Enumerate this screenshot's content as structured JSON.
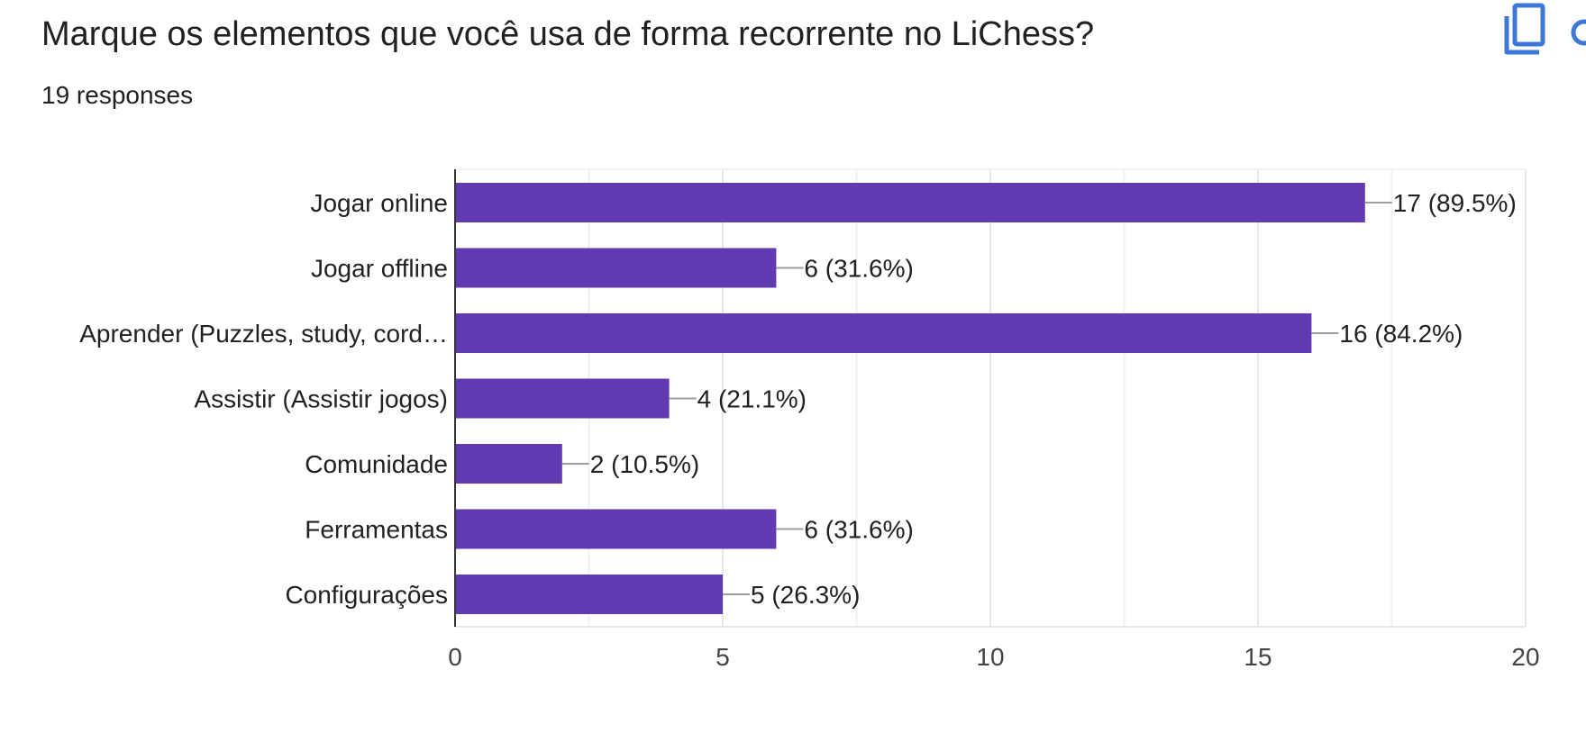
{
  "header": {
    "title": "Marque os elementos que você usa de forma recorrente no LiChess?",
    "responses": "19 responses",
    "copy_icon": "copy-icon",
    "more_icon": "more-options-icon"
  },
  "colors": {
    "bar": "#6139b0",
    "grid": "#e8e8e8",
    "axis": "#333333",
    "leader": "#9e9e9e",
    "icon": "#3c78d8"
  },
  "chart_data": {
    "type": "bar",
    "orientation": "horizontal",
    "categories": [
      "Jogar online",
      "Jogar offline",
      "Aprender (Puzzles, study, cord…",
      "Assistir (Assistir jogos)",
      "Comunidade",
      "Ferramentas",
      "Configurações"
    ],
    "values": [
      17,
      6,
      16,
      4,
      2,
      6,
      5
    ],
    "data_labels": [
      "17 (89.5%)",
      "6 (31.6%)",
      "16 (84.2%)",
      "4 (21.1%)",
      "2 (10.5%)",
      "6 (31.6%)",
      "5 (26.3%)"
    ],
    "xlim": [
      0,
      20
    ],
    "xticks": [
      0,
      5,
      10,
      15,
      20
    ],
    "xtick_labels": [
      "0",
      "5",
      "10",
      "15",
      "20"
    ],
    "minor_gridlines": [
      2.5,
      7.5,
      12.5,
      17.5
    ],
    "grid": true,
    "legend": "none"
  }
}
